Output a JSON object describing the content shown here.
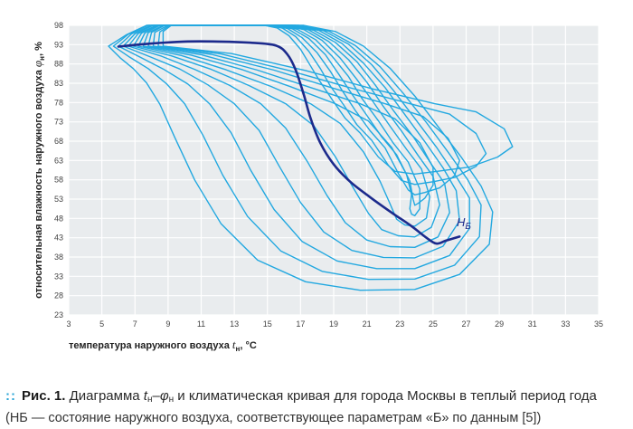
{
  "chart_data": {
    "type": "line",
    "x_axis": {
      "label_prefix": "температура наружного воздуха ",
      "label_symbol": "t",
      "label_sub": "н",
      "label_suffix": ", °С",
      "min": 3,
      "max": 35,
      "ticks": [
        3,
        5,
        7,
        9,
        11,
        13,
        15,
        17,
        19,
        21,
        23,
        25,
        27,
        29,
        31,
        33,
        35
      ]
    },
    "y_axis": {
      "label_prefix": "относительная влажность наружного воздуха ",
      "label_symbol": "φ",
      "label_sub": "н",
      "label_suffix": ", %",
      "min": 23,
      "max": 98,
      "ticks": [
        23,
        28,
        33,
        38,
        43,
        48,
        53,
        58,
        63,
        68,
        73,
        78,
        83,
        88,
        93,
        98
      ]
    },
    "grid": true,
    "series": [
      {
        "color": "#1c2a8c",
        "x": [
          6.0,
          8.0,
          10.0,
          12.0,
          14.0,
          15.5,
          16.2,
          16.7,
          17.2,
          17.6,
          18.2,
          19.0,
          20.0,
          21.2,
          22.5,
          23.7,
          24.6,
          25.2,
          25.8,
          26.6
        ],
        "y": [
          92.5,
          93.3,
          93.8,
          93.8,
          93.5,
          92.8,
          90.5,
          86.5,
          80.0,
          74.0,
          67.5,
          62.0,
          57.5,
          53.5,
          49.5,
          46.0,
          43.0,
          41.5,
          42.3,
          43.3
        ]
      }
    ],
    "contours": [
      {
        "color": "#22a8e0",
        "x": [
          5.4,
          6.5,
          7.7,
          9.4,
          11.3,
          13.2,
          15.2,
          17.2,
          19.1,
          20.8,
          22.4,
          23.9,
          25.3,
          26.7,
          27.9,
          28.6,
          28.4,
          26.6,
          23.9,
          20.6,
          17.3,
          14.4,
          12.2,
          10.6,
          9.4,
          8.5,
          7.7,
          6.9,
          6.1,
          5.4
        ],
        "y": [
          92.6,
          95.6,
          98.0,
          98.0,
          98.0,
          98.0,
          98.0,
          98.0,
          96.4,
          92.6,
          86.9,
          79.7,
          71.8,
          63.9,
          56.4,
          49.7,
          41.3,
          33.5,
          29.6,
          29.4,
          31.6,
          37.2,
          46.6,
          58.0,
          69.0,
          77.6,
          83.1,
          86.8,
          89.6,
          92.6
        ]
      },
      {
        "color": "#22a8e0",
        "x": [
          5.7,
          6.6,
          7.8,
          9.4,
          11.2,
          13.1,
          15.0,
          16.9,
          18.7,
          20.3,
          21.8,
          23.2,
          24.6,
          25.9,
          27.1,
          27.9,
          27.8,
          26.3,
          23.9,
          21.1,
          18.3,
          15.8,
          13.8,
          12.3,
          11.1,
          10.0,
          8.9,
          7.8,
          6.7,
          5.7
        ],
        "y": [
          92.6,
          95.7,
          98.0,
          98.0,
          98.0,
          98.0,
          98.0,
          98.0,
          96.5,
          92.8,
          87.3,
          80.4,
          72.8,
          65.2,
          58.0,
          51.5,
          43.3,
          35.9,
          32.3,
          32.2,
          34.3,
          39.6,
          48.5,
          59.2,
          69.6,
          77.7,
          82.9,
          86.8,
          89.7,
          92.6
        ]
      },
      {
        "color": "#22a8e0",
        "x": [
          6.0,
          6.8,
          8.0,
          9.5,
          11.2,
          13.1,
          14.9,
          16.7,
          18.4,
          19.9,
          21.3,
          22.6,
          23.9,
          25.2,
          26.3,
          27.2,
          27.2,
          26.0,
          23.9,
          21.6,
          19.2,
          17.1,
          15.4,
          14.0,
          12.8,
          11.5,
          10.2,
          8.7,
          7.3,
          6.0
        ],
        "y": [
          92.6,
          95.8,
          98.0,
          98.0,
          98.0,
          98.0,
          98.0,
          98.0,
          96.6,
          93.1,
          87.8,
          81.2,
          73.9,
          66.5,
          59.5,
          53.3,
          45.4,
          38.4,
          35.0,
          35.0,
          37.0,
          42.0,
          50.3,
          60.4,
          70.2,
          77.7,
          82.8,
          86.7,
          89.8,
          92.6
        ]
      },
      {
        "color": "#22a8e0",
        "x": [
          6.3,
          7.0,
          8.1,
          9.6,
          11.3,
          13.0,
          14.8,
          16.5,
          18.1,
          19.5,
          20.8,
          22.1,
          23.3,
          24.5,
          25.6,
          26.4,
          26.6,
          25.6,
          23.9,
          22.0,
          20.1,
          18.4,
          17.0,
          15.7,
          14.5,
          13.0,
          11.4,
          9.7,
          7.9,
          6.3
        ],
        "y": [
          92.6,
          95.8,
          98.0,
          98.0,
          98.0,
          98.0,
          98.0,
          98.0,
          96.7,
          93.3,
          88.2,
          81.9,
          74.9,
          67.9,
          61.1,
          55.2,
          47.4,
          40.8,
          37.8,
          37.9,
          39.7,
          44.5,
          52.1,
          61.6,
          70.8,
          77.7,
          82.6,
          86.7,
          89.9,
          92.6
        ]
      },
      {
        "color": "#22a8e0",
        "x": [
          6.6,
          7.2,
          8.3,
          9.6,
          11.3,
          13.0,
          14.7,
          16.3,
          17.8,
          19.1,
          20.4,
          21.5,
          22.6,
          23.8,
          24.8,
          25.7,
          26.0,
          25.3,
          23.9,
          22.4,
          21.0,
          19.7,
          18.6,
          17.4,
          16.1,
          14.6,
          12.7,
          10.6,
          8.6,
          6.6
        ],
        "y": [
          92.6,
          95.9,
          98.0,
          98.0,
          98.0,
          98.0,
          98.0,
          98.0,
          96.7,
          93.6,
          88.6,
          82.6,
          76.0,
          69.2,
          62.7,
          57.0,
          49.5,
          43.2,
          40.5,
          40.7,
          42.4,
          46.9,
          53.9,
          62.8,
          71.4,
          77.7,
          82.5,
          86.6,
          90.0,
          92.6
        ]
      },
      {
        "color": "#22a8e0",
        "x": [
          6.9,
          7.4,
          8.4,
          9.7,
          11.3,
          12.9,
          14.6,
          16.1,
          17.5,
          18.7,
          19.9,
          21.0,
          22.0,
          23.1,
          24.1,
          25.0,
          25.4,
          24.9,
          23.9,
          22.9,
          21.9,
          21.1,
          20.2,
          19.1,
          17.8,
          16.1,
          13.9,
          11.6,
          9.2,
          6.9
        ],
        "y": [
          92.6,
          96.0,
          98.0,
          98.0,
          98.0,
          98.0,
          98.0,
          98.0,
          96.8,
          93.8,
          89.1,
          83.3,
          77.0,
          70.6,
          64.3,
          58.9,
          51.5,
          45.7,
          43.2,
          43.5,
          45.1,
          49.3,
          55.8,
          64.0,
          72.0,
          77.7,
          82.4,
          86.6,
          90.1,
          92.6
        ]
      },
      {
        "color": "#22a8e0",
        "x": [
          7.2,
          7.6,
          8.5,
          9.8,
          11.3,
          12.9,
          14.4,
          15.9,
          17.2,
          18.3,
          19.4,
          20.4,
          21.4,
          22.4,
          23.4,
          24.3,
          24.8,
          24.6,
          23.9,
          23.3,
          22.8,
          22.4,
          21.8,
          20.8,
          19.4,
          17.6,
          15.2,
          12.5,
          9.8,
          7.2
        ],
        "y": [
          92.6,
          96.0,
          98.0,
          98.0,
          98.0,
          98.0,
          98.0,
          98.0,
          96.9,
          94.1,
          89.5,
          84.0,
          78.1,
          71.9,
          65.9,
          60.8,
          53.6,
          48.1,
          46.0,
          46.3,
          47.8,
          51.8,
          57.6,
          65.2,
          72.6,
          77.7,
          82.2,
          86.5,
          90.2,
          92.6
        ]
      },
      {
        "color": "#22a8e0",
        "x": [
          7.5,
          7.8,
          8.7,
          9.9,
          11.4,
          12.8,
          14.3,
          15.7,
          16.8,
          17.9,
          18.9,
          19.9,
          20.7,
          21.7,
          22.6,
          23.5,
          24.2,
          24.2,
          23.9,
          23.7,
          23.6,
          23.7,
          23.4,
          22.5,
          21.1,
          19.1,
          16.4,
          13.5,
          10.4,
          7.5
        ],
        "y": [
          92.6,
          96.1,
          98.0,
          98.0,
          98.0,
          98.0,
          98.0,
          98.0,
          97.0,
          94.3,
          90.0,
          84.7,
          79.1,
          73.3,
          67.5,
          62.6,
          55.6,
          50.5,
          48.7,
          49.1,
          50.5,
          54.2,
          59.4,
          66.4,
          73.2,
          77.7,
          82.1,
          86.5,
          90.3,
          92.6
        ]
      },
      {
        "color": "#22a8e0",
        "x": [
          7.8,
          8.0,
          8.8,
          10.0,
          11.4,
          12.8,
          14.2,
          15.4,
          16.5,
          17.5,
          18.5,
          19.3,
          20.1,
          21.0,
          21.9,
          22.8,
          23.6,
          23.8,
          23.9,
          24.1,
          24.5,
          25.0,
          25.0,
          24.2,
          22.7,
          20.6,
          17.6,
          14.4,
          11.0,
          7.8
        ],
        "y": [
          92.6,
          96.2,
          98.0,
          98.0,
          98.0,
          98.0,
          98.0,
          98.0,
          97.1,
          94.6,
          90.4,
          85.4,
          80.2,
          74.7,
          69.1,
          64.5,
          57.7,
          52.9,
          51.4,
          51.9,
          53.2,
          56.6,
          61.2,
          67.6,
          73.8,
          77.7,
          81.9,
          86.4,
          90.4,
          92.6
        ]
      },
      {
        "color": "#22a8e0",
        "x": [
          8.1,
          8.2,
          9.0,
          10.0,
          11.4,
          12.7,
          14.0,
          15.2,
          16.2,
          17.1,
          18.0,
          18.8,
          19.5,
          20.3,
          21.2,
          22.1,
          22.9,
          23.5,
          23.9,
          24.5,
          25.4,
          26.3,
          26.6,
          25.9,
          24.4,
          22.1,
          18.9,
          15.4,
          11.6,
          8.1
        ],
        "y": [
          92.6,
          96.2,
          98.0,
          98.0,
          98.0,
          98.0,
          98.0,
          98.0,
          97.2,
          94.8,
          90.9,
          86.1,
          81.2,
          76.0,
          70.7,
          66.3,
          59.7,
          55.4,
          54.1,
          54.7,
          55.9,
          59.1,
          63.0,
          68.8,
          74.4,
          77.7,
          81.8,
          86.4,
          90.5,
          92.6
        ]
      },
      {
        "color": "#22a8e0",
        "x": [
          8.4,
          8.5,
          9.1,
          10.1,
          11.4,
          12.7,
          13.9,
          15.0,
          15.9,
          16.7,
          17.5,
          18.2,
          18.8,
          19.6,
          20.4,
          21.3,
          22.3,
          23.1,
          23.9,
          25.0,
          26.3,
          27.6,
          28.2,
          27.6,
          26.0,
          23.6,
          20.1,
          16.3,
          12.2,
          8.4
        ],
        "y": [
          92.6,
          96.3,
          98.0,
          98.0,
          98.0,
          98.0,
          98.0,
          98.0,
          97.3,
          95.1,
          91.3,
          86.8,
          82.3,
          77.4,
          72.3,
          68.2,
          61.8,
          57.8,
          56.8,
          57.5,
          58.6,
          61.5,
          64.8,
          70.0,
          75.0,
          77.7,
          81.7,
          86.3,
          90.6,
          92.6
        ]
      },
      {
        "color": "#22a8e0",
        "x": [
          8.7,
          8.7,
          9.2,
          10.2,
          11.5,
          12.6,
          13.8,
          14.8,
          15.6,
          16.3,
          17.0,
          17.6,
          18.2,
          18.9,
          19.7,
          20.6,
          21.7,
          22.7,
          23.9,
          25.4,
          27.2,
          28.9,
          29.8,
          29.3,
          27.6,
          25.1,
          21.4,
          17.3,
          12.8,
          8.7
        ],
        "y": [
          92.6,
          96.4,
          98.0,
          98.0,
          98.0,
          98.0,
          98.0,
          98.0,
          97.3,
          95.3,
          91.8,
          87.5,
          83.3,
          78.8,
          73.9,
          70.1,
          63.9,
          60.2,
          59.5,
          60.3,
          61.3,
          63.9,
          66.6,
          71.2,
          75.6,
          77.7,
          81.5,
          86.3,
          90.7,
          92.6
        ]
      }
    ]
  },
  "annotation": {
    "main": "Н",
    "sub": "Б"
  },
  "caption": {
    "marker": "::",
    "label": "Рис. 1.",
    "title_prefix": "Диаграмма ",
    "t_symbol": "t",
    "t_sub": "н",
    "dash": "–",
    "phi_symbol": "φ",
    "phi_sub": "н",
    "title_suffix": " и климатическая кривая для города Москвы в теплый период года",
    "line2": "(НБ — состояние наружного воздуха, соответствующее параметрам «Б» по данным [5])"
  }
}
